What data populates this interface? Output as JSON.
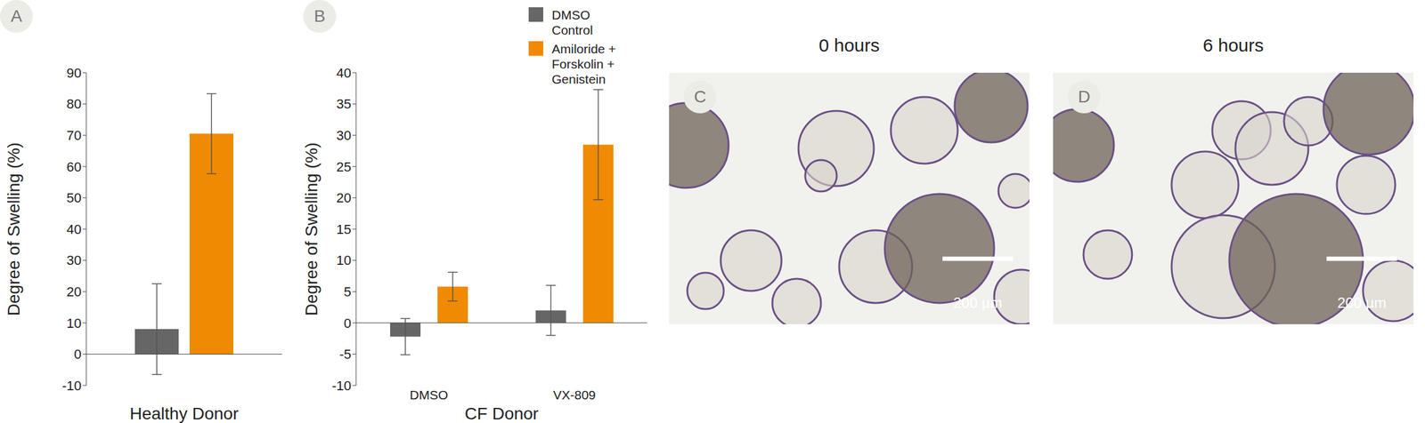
{
  "chart_data": [
    {
      "type": "bar",
      "panel_label": "A",
      "y_label": "Degree of Swelling (%)",
      "x_label": "Healthy Donor",
      "categories": [
        null
      ],
      "series": [
        {
          "name": "DMSO Control",
          "color": "#666666",
          "values": [
            8
          ],
          "errors": [
            14.5
          ]
        },
        {
          "name": "Amiloride + Forskolin + Genistein",
          "color": "#f08a00",
          "values": [
            70.5
          ],
          "errors": [
            12.8
          ]
        }
      ],
      "ylim": [
        -10,
        90
      ],
      "yticks": [
        -10,
        0,
        10,
        20,
        30,
        40,
        50,
        60,
        70,
        80,
        90
      ]
    },
    {
      "type": "bar",
      "panel_label": "B",
      "y_label": "Degree of Swelling (%)",
      "x_label": "CF Donor",
      "categories": [
        "DMSO",
        "VX-809"
      ],
      "series": [
        {
          "name": "DMSO Control",
          "color": "#666666",
          "values": [
            -2.2,
            2.0
          ],
          "errors": [
            2.9,
            4.0
          ]
        },
        {
          "name": "Amiloride + Forskolin + Genistein",
          "color": "#f08a00",
          "values": [
            5.8,
            28.5
          ],
          "errors": [
            2.3,
            8.8
          ]
        }
      ],
      "ylim": [
        -10,
        40
      ],
      "yticks": [
        -10,
        -5,
        0,
        5,
        10,
        15,
        20,
        25,
        30,
        35,
        40
      ],
      "legend": "upper right"
    }
  ],
  "images": [
    {
      "panel_label": "C",
      "title": "0 hours",
      "scale_bar": "200 µm"
    },
    {
      "panel_label": "D",
      "title": "6 hours",
      "scale_bar": "200 µm"
    }
  ]
}
